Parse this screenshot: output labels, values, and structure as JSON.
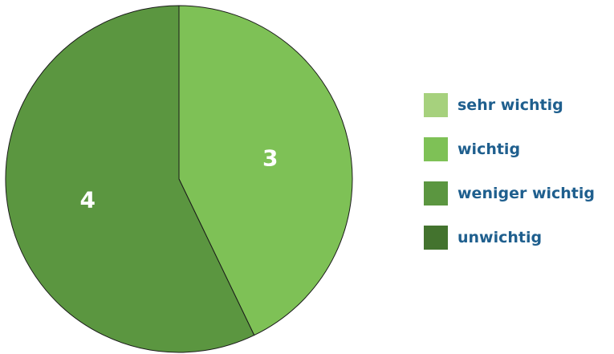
{
  "chart_data": {
    "type": "pie",
    "categories": [
      "sehr wichtig",
      "wichtig",
      "weniger wichtig",
      "unwichtig"
    ],
    "values": [
      0,
      3,
      4,
      0
    ],
    "colors": [
      "#a6d17d",
      "#7ec156",
      "#5b9640",
      "#43732e"
    ],
    "data_labels": [
      "",
      "3",
      "4",
      ""
    ],
    "legend_position": "right",
    "title": ""
  }
}
